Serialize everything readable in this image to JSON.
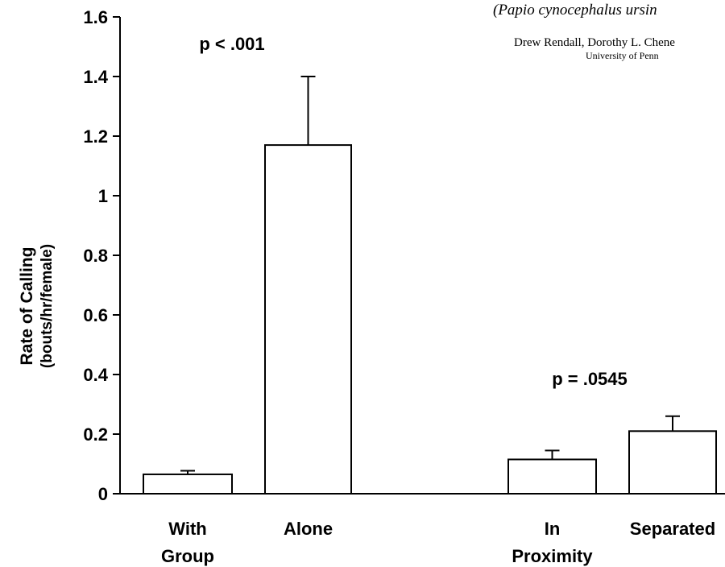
{
  "header": {
    "title_fragment": "(Papio cynocephalus ursin",
    "authors": "Drew Rendall, Dorothy L. Chene",
    "affiliation": "University of Penn"
  },
  "chart_data": {
    "type": "bar",
    "ylabel_line1": "Rate of Calling",
    "ylabel_line2": "(bouts/hr/female)",
    "ylim": [
      0,
      1.6
    ],
    "yticks": [
      "0",
      "0.2",
      "0.4",
      "0.6",
      "0.8",
      "1",
      "1.2",
      "1.4",
      "1.6"
    ],
    "grid": false,
    "bar_fill": "#ffffff",
    "bar_stroke": "#000000",
    "groups": [
      {
        "annotation": "p < .001",
        "bars": [
          {
            "label_lines": [
              "With",
              "Group"
            ],
            "value": 0.065,
            "error": 0.012
          },
          {
            "label_lines": [
              "Alone"
            ],
            "value": 1.17,
            "error": 0.23
          }
        ]
      },
      {
        "annotation": "p = .0545",
        "bars": [
          {
            "label_lines": [
              "In",
              "Proximity"
            ],
            "value": 0.115,
            "error": 0.03
          },
          {
            "label_lines": [
              "Separated"
            ],
            "value": 0.21,
            "error": 0.05
          }
        ]
      }
    ]
  }
}
